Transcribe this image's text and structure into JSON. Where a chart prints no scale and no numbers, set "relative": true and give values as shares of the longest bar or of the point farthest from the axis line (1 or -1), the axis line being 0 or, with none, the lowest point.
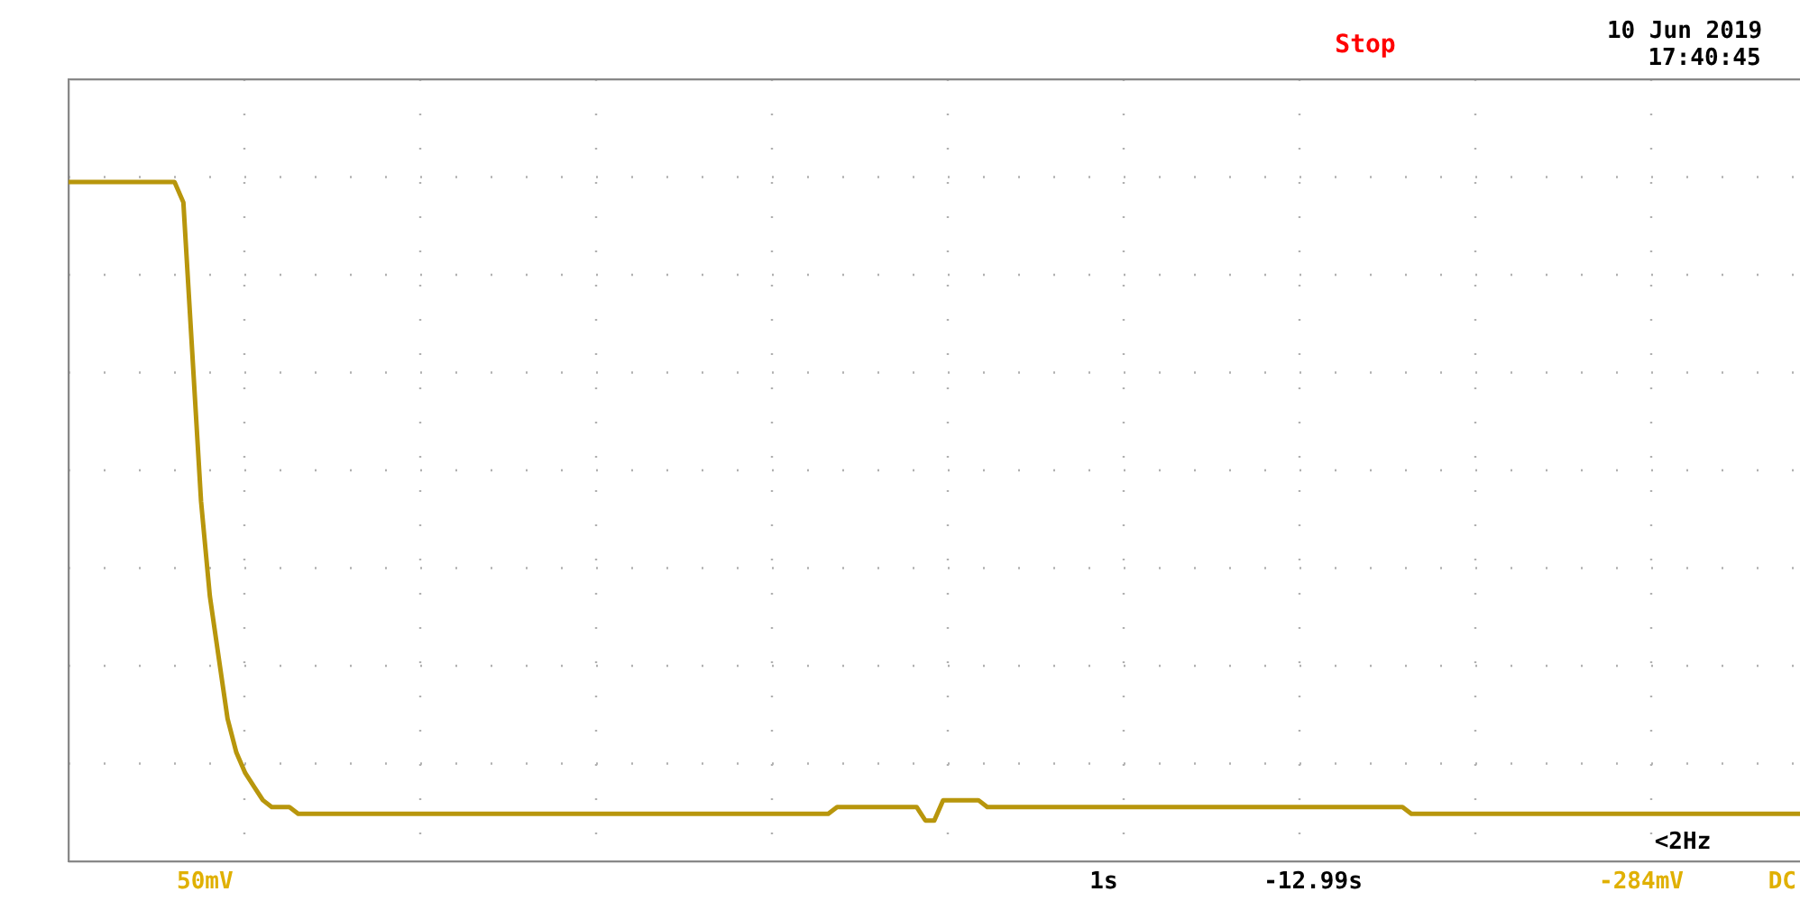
{
  "chart_data": {
    "type": "line",
    "relative": true,
    "grid": true,
    "color": "#b8960c",
    "categories": [
      null,
      null,
      null,
      null,
      null,
      null,
      null,
      null,
      null,
      null,
      null,
      null,
      null,
      null,
      null,
      null,
      null,
      null,
      null,
      null,
      null,
      null,
      null,
      null,
      null,
      null,
      null,
      null,
      null,
      null,
      null,
      null,
      null,
      null,
      null,
      null,
      null,
      null,
      null,
      null,
      null,
      null,
      null,
      null,
      null,
      null,
      null,
      null,
      null,
      null,
      null,
      null,
      null,
      null,
      null,
      null,
      null,
      null,
      null,
      null,
      null,
      null,
      null,
      null,
      null,
      null,
      null,
      null,
      null,
      null,
      null,
      null,
      null,
      null,
      null,
      null,
      null,
      null,
      null,
      null,
      null,
      null,
      null,
      null,
      null,
      null,
      null,
      null,
      null,
      null,
      null,
      null,
      null,
      null,
      null,
      null,
      null,
      null,
      null,
      null,
      null,
      null,
      null,
      null,
      null,
      null,
      null,
      null,
      null,
      null,
      null,
      null,
      null,
      null,
      null,
      null,
      null,
      null,
      null,
      null,
      null,
      null,
      null,
      null,
      null,
      null,
      null,
      null,
      null,
      null,
      null,
      null,
      null,
      null,
      null,
      null,
      null,
      null,
      null,
      null,
      null,
      null,
      null,
      null,
      null,
      null,
      null,
      null,
      null,
      null,
      null,
      null,
      null,
      null,
      null,
      null,
      null,
      null,
      null,
      null,
      null,
      null,
      null,
      null,
      null,
      null,
      null,
      null,
      null,
      null,
      null,
      null,
      null,
      null,
      null,
      null,
      null,
      null,
      null,
      null,
      null,
      null,
      null,
      null,
      null,
      null,
      null,
      null,
      null,
      null,
      null,
      null,
      null,
      null,
      null,
      null,
      null
    ],
    "values": [
      1,
      1,
      1,
      1,
      1,
      1,
      1,
      1,
      1,
      1,
      1,
      1,
      1,
      0.97,
      0.75,
      0.53,
      0.39,
      0.3,
      0.21,
      0.16,
      0.13,
      0.11,
      0.09,
      0.08,
      0.08,
      0.08,
      0.07,
      0.07,
      0.07,
      0.07,
      0.07,
      0.07,
      0.07,
      0.07,
      0.07,
      0.07,
      0.07,
      0.07,
      0.07,
      0.07,
      0.07,
      0.07,
      0.07,
      0.07,
      0.07,
      0.07,
      0.07,
      0.07,
      0.07,
      0.07,
      0.07,
      0.07,
      0.07,
      0.07,
      0.07,
      0.07,
      0.07,
      0.07,
      0.07,
      0.07,
      0.07,
      0.07,
      0.07,
      0.07,
      0.07,
      0.07,
      0.07,
      0.07,
      0.07,
      0.07,
      0.07,
      0.07,
      0.07,
      0.07,
      0.07,
      0.07,
      0.07,
      0.07,
      0.07,
      0.07,
      0.07,
      0.07,
      0.07,
      0.07,
      0.07,
      0.07,
      0.07,
      0.08,
      0.08,
      0.08,
      0.08,
      0.08,
      0.08,
      0.08,
      0.08,
      0.08,
      0.08,
      0.06,
      0.06,
      0.09,
      0.09,
      0.09,
      0.09,
      0.09,
      0.08,
      0.08,
      0.08,
      0.08,
      0.08,
      0.08,
      0.08,
      0.08,
      0.08,
      0.08,
      0.08,
      0.08,
      0.08,
      0.08,
      0.08,
      0.08,
      0.08,
      0.08,
      0.08,
      0.08,
      0.08,
      0.08,
      0.08,
      0.08,
      0.08,
      0.08,
      0.08,
      0.08,
      0.08,
      0.08,
      0.08,
      0.08,
      0.08,
      0.08,
      0.08,
      0.08,
      0.08,
      0.08,
      0.08,
      0.08,
      0.08,
      0.08,
      0.08,
      0.08,
      0.08,
      0.08,
      0.08,
      0.08,
      0.07,
      0.07,
      0.07,
      0.07,
      0.07,
      0.07,
      0.07,
      0.07,
      0.07,
      0.07,
      0.07,
      0.07,
      0.07,
      0.07,
      0.07,
      0.07,
      0.07,
      0.07,
      0.07,
      0.07,
      0.07,
      0.07,
      0.07,
      0.07,
      0.07,
      0.07,
      0.07,
      0.07,
      0.07,
      0.07,
      0.07,
      0.07,
      0.07,
      0.07,
      0.07,
      0.07,
      0.07,
      0.07,
      0.07,
      0.07,
      0.07,
      0.07,
      0.07,
      0.07,
      0.07
    ],
    "annotations": [
      "Stop",
      "10 Jun 2019",
      "17:40:45",
      "50mV",
      "1s",
      "-12.99s",
      "-284mV",
      "DC",
      "<2Hz"
    ]
  }
}
